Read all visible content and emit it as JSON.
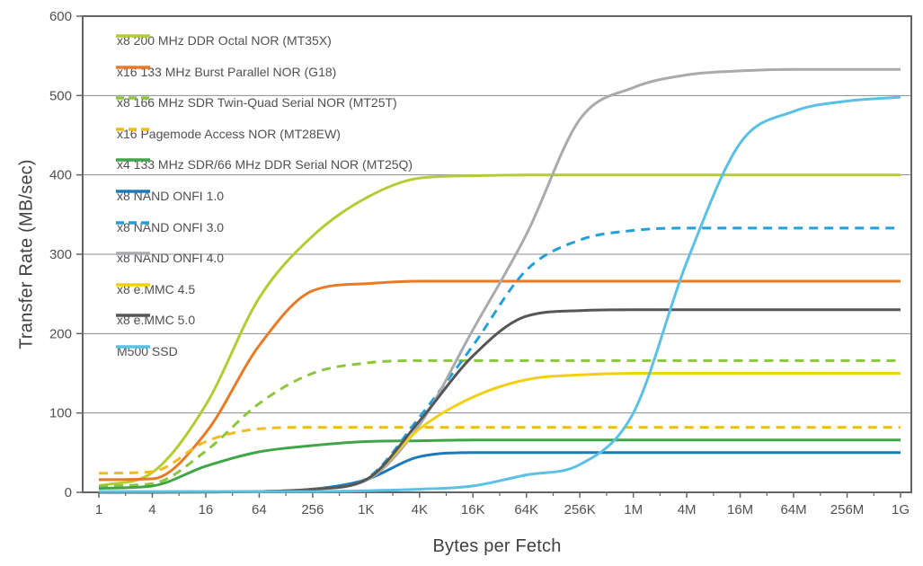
{
  "chart_data": {
    "type": "line",
    "title": "",
    "xlabel": "Bytes per Fetch",
    "ylabel": "Transfer Rate (MB/sec)",
    "x_scale": "log4",
    "x_categories": [
      "1",
      "4",
      "16",
      "64",
      "256",
      "1K",
      "4K",
      "16K",
      "64K",
      "256K",
      "1M",
      "4M",
      "16M",
      "64M",
      "256M",
      "1G"
    ],
    "y_ticks": [
      0,
      100,
      200,
      300,
      400,
      500,
      600
    ],
    "ylim": [
      0,
      600
    ],
    "grid": "horizontal",
    "legend_position": "top-left-inside",
    "series": [
      {
        "id": "mt35x",
        "name": "x8 200 MHz DDR Octal NOR (MT35X)",
        "color": "#b2cc34",
        "dash": false,
        "values": [
          8,
          25,
          110,
          245,
          323,
          371,
          396,
          399,
          400,
          400,
          400,
          400,
          400,
          400,
          400,
          400
        ]
      },
      {
        "id": "g18",
        "name": "x16 133 MHz Burst Parallel NOR (G18)",
        "color": "#e87a25",
        "dash": false,
        "values": [
          16,
          17,
          75,
          185,
          254,
          263,
          266,
          266,
          266,
          266,
          266,
          266,
          266,
          266,
          266,
          266
        ]
      },
      {
        "id": "mt25t",
        "name": "x8 166 MHz SDR Twin-Quad Serial NOR (MT25T)",
        "color": "#8cc63f",
        "dash": true,
        "values": [
          8,
          11,
          52,
          112,
          150,
          163,
          166,
          166,
          166,
          166,
          166,
          166,
          166,
          166,
          166,
          166
        ]
      },
      {
        "id": "mt28ew",
        "name": "x16 Pagemode Access  NOR (MT28EW)",
        "color": "#f2bb1d",
        "dash": true,
        "values": [
          24,
          26,
          64,
          80,
          82,
          82,
          82,
          82,
          82,
          82,
          82,
          82,
          82,
          82,
          82,
          82
        ]
      },
      {
        "id": "mt25q",
        "name": "x4 133 MHz SDR/66 MHz DDR Serial NOR (MT25Q)",
        "color": "#3fa648",
        "dash": false,
        "values": [
          5,
          8,
          33,
          51,
          59,
          64,
          65,
          66,
          66,
          66,
          66,
          66,
          66,
          66,
          66,
          66
        ]
      },
      {
        "id": "onfi1",
        "name": "x8 NAND ONFI 1.0",
        "color": "#1a7abc",
        "dash": false,
        "values": [
          0,
          0,
          0.5,
          1,
          4,
          16,
          45,
          50,
          50,
          50,
          50,
          50,
          50,
          50,
          50,
          50
        ]
      },
      {
        "id": "onfi3",
        "name": "x8 NAND ONFI 3.0",
        "color": "#23a0da",
        "dash": true,
        "values": [
          0,
          0,
          0.5,
          1,
          4,
          17,
          95,
          185,
          280,
          318,
          330,
          333,
          333,
          333,
          333,
          333
        ]
      },
      {
        "id": "onfi4",
        "name": "x8 NAND ONFI 4.0",
        "color": "#a8aaad",
        "dash": false,
        "values": [
          0,
          0,
          0.5,
          1,
          4,
          15,
          85,
          205,
          325,
          470,
          510,
          526,
          531,
          533,
          533,
          533
        ]
      },
      {
        "id": "emmc45",
        "name": "x8 e.MMC 4.5",
        "color": "#f4cf0e",
        "dash": false,
        "values": [
          0,
          0,
          0.5,
          1,
          4,
          16,
          80,
          120,
          142,
          148,
          150,
          150,
          150,
          150,
          150,
          150
        ]
      },
      {
        "id": "emmc50",
        "name": "x8 e.MMC 5.0",
        "color": "#55565a",
        "dash": false,
        "values": [
          0,
          0,
          0.5,
          1,
          4,
          16,
          90,
          172,
          222,
          229,
          230,
          230,
          230,
          230,
          230,
          230
        ]
      },
      {
        "id": "m500",
        "name": "M500 SSD",
        "color": "#5ac1e4",
        "dash": false,
        "values": [
          1,
          1,
          1,
          1,
          1,
          2,
          4,
          8,
          22,
          35,
          100,
          290,
          440,
          480,
          493,
          498
        ]
      }
    ]
  },
  "style_colors": {
    "grid": "#8a8c8f",
    "border": "#636466",
    "tick_label": "#4f5052",
    "axis_title": "#414042"
  }
}
